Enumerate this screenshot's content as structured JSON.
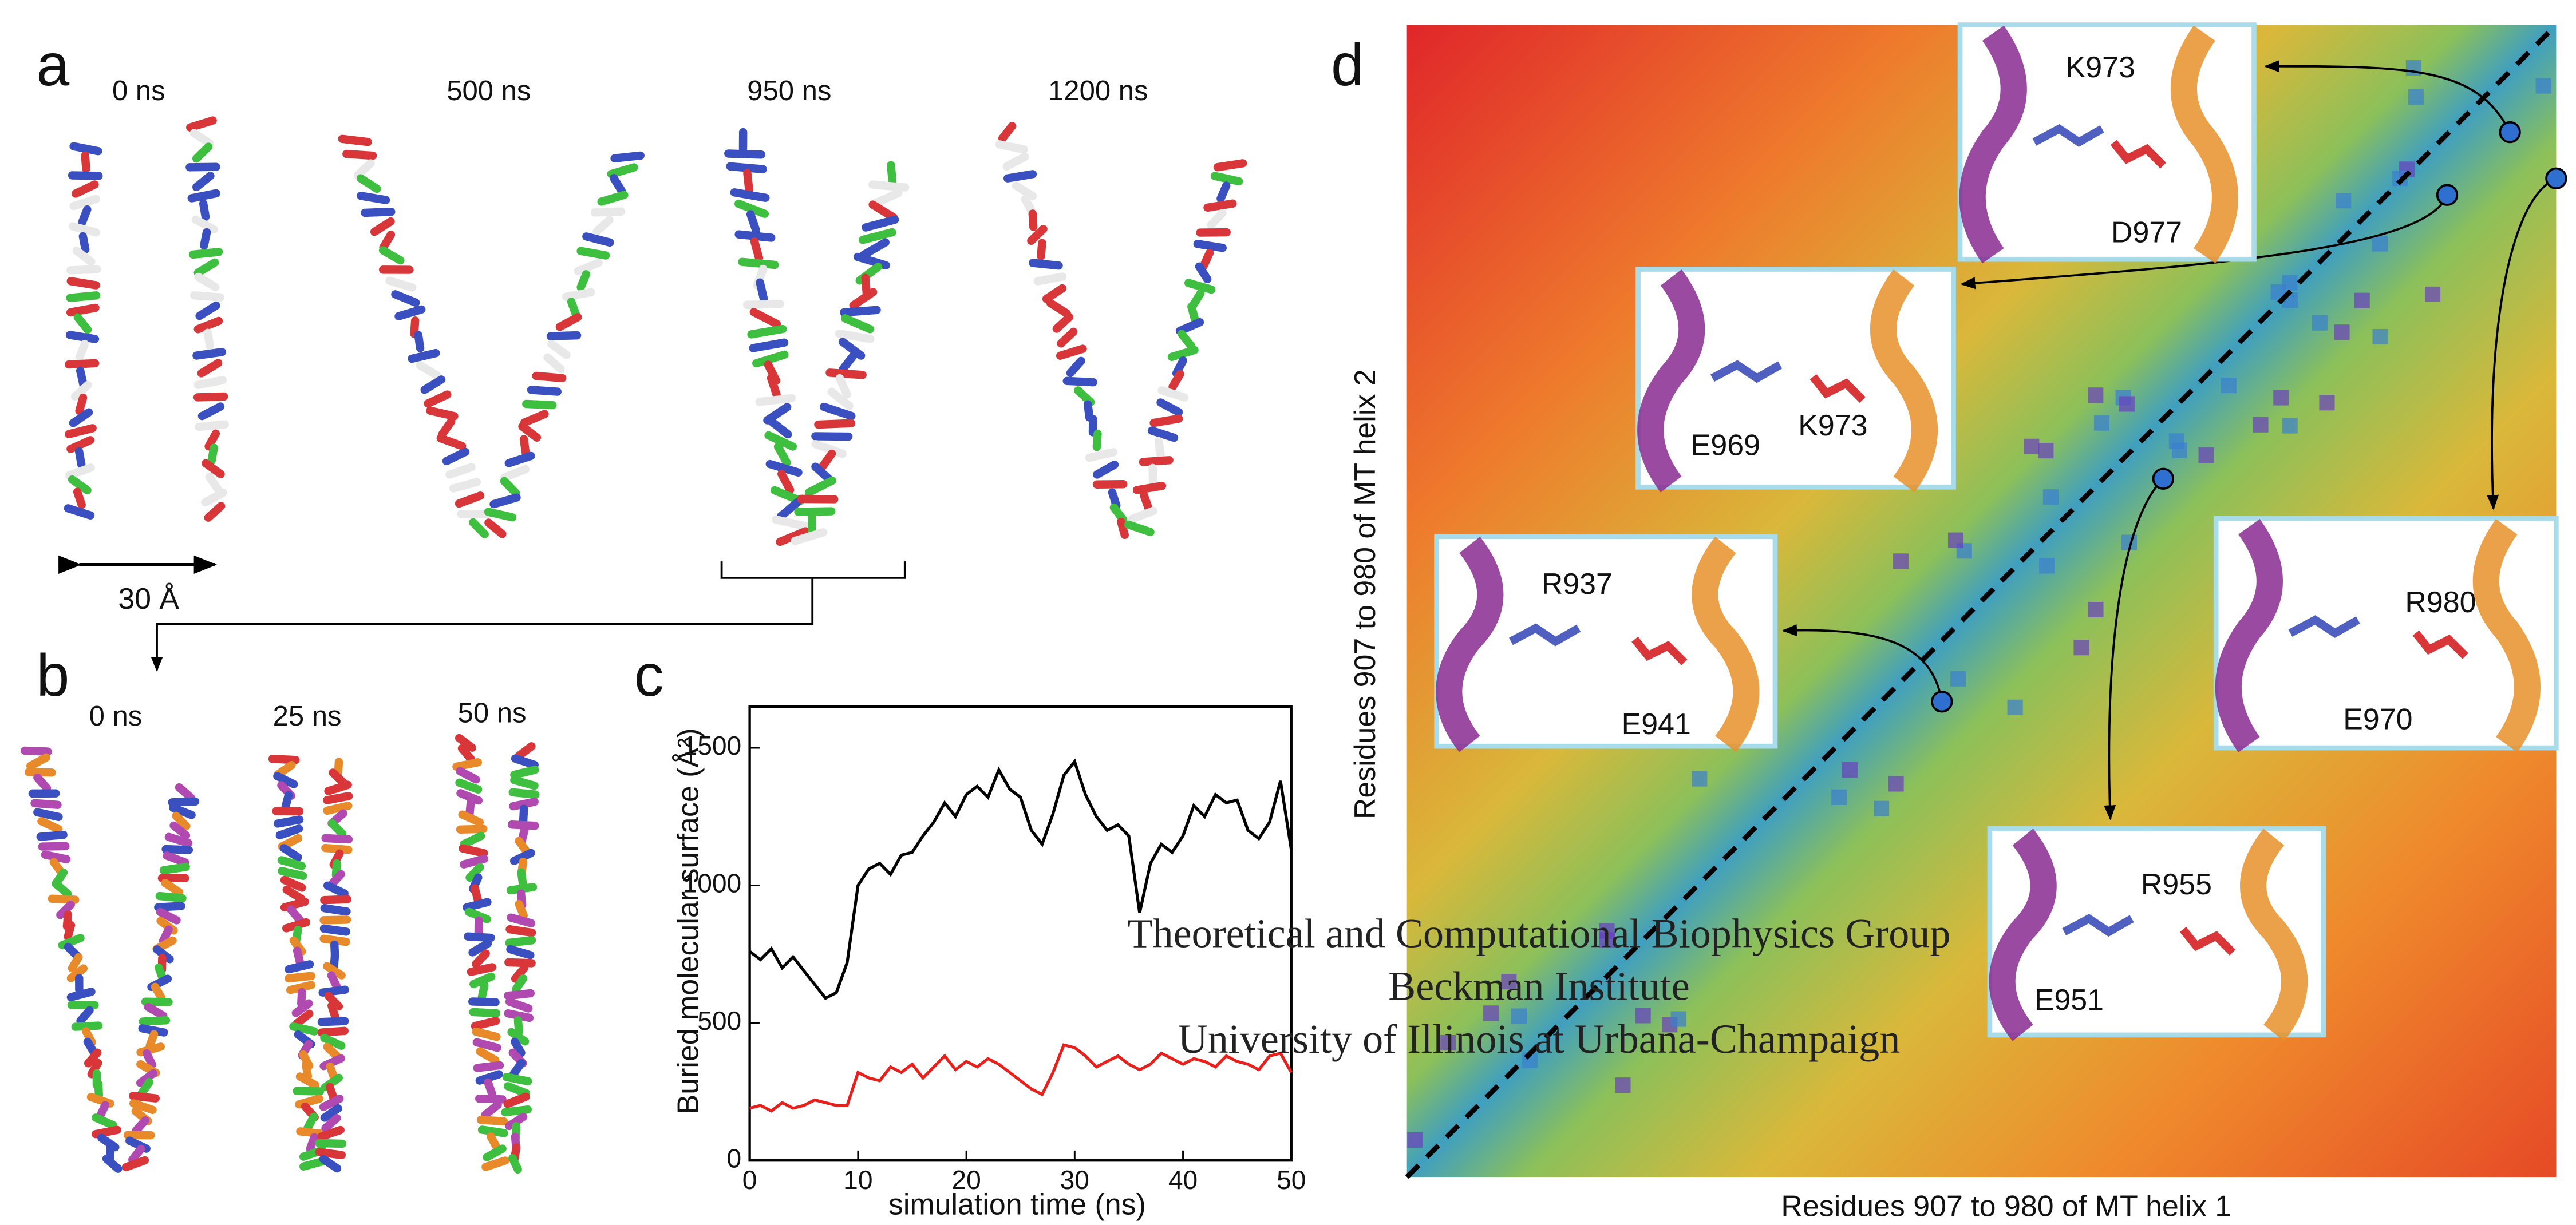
{
  "panels": {
    "a": "a",
    "b": "b",
    "c": "c",
    "d": "d"
  },
  "panel_a": {
    "times": [
      "0 ns",
      "500 ns",
      "950 ns",
      "1200 ns"
    ],
    "scale": "30  Å"
  },
  "panel_b": {
    "times": [
      "0 ns",
      "25 ns",
      "50 ns"
    ]
  },
  "chart_data": {
    "type": "line",
    "x_label": "simulation time (ns)",
    "y_label": "Buried molecular surface (Å²)",
    "x": [
      0,
      1,
      2,
      3,
      4,
      5,
      6,
      7,
      8,
      9,
      10,
      11,
      12,
      13,
      14,
      15,
      16,
      17,
      18,
      19,
      20,
      21,
      22,
      23,
      24,
      25,
      26,
      27,
      28,
      29,
      30,
      31,
      32,
      33,
      34,
      35,
      36,
      37,
      38,
      39,
      40,
      41,
      42,
      43,
      44,
      45,
      46,
      47,
      48,
      49,
      50
    ],
    "series": [
      {
        "color": "#000000",
        "values": [
          760,
          730,
          770,
          700,
          740,
          690,
          640,
          590,
          610,
          720,
          1000,
          1060,
          1080,
          1040,
          1110,
          1120,
          1180,
          1230,
          1300,
          1250,
          1330,
          1360,
          1320,
          1420,
          1350,
          1320,
          1200,
          1150,
          1260,
          1400,
          1450,
          1330,
          1250,
          1200,
          1220,
          1180,
          900,
          1080,
          1150,
          1120,
          1180,
          1290,
          1250,
          1330,
          1300,
          1310,
          1200,
          1170,
          1230,
          1380,
          1130
        ]
      },
      {
        "color": "#e8201c",
        "values": [
          190,
          200,
          180,
          210,
          190,
          200,
          220,
          210,
          200,
          200,
          320,
          300,
          290,
          340,
          320,
          350,
          300,
          340,
          380,
          330,
          360,
          340,
          370,
          350,
          320,
          290,
          260,
          240,
          320,
          420,
          410,
          380,
          340,
          360,
          380,
          350,
          330,
          350,
          390,
          370,
          350,
          370,
          360,
          340,
          380,
          360,
          350,
          330,
          380,
          390,
          320
        ]
      }
    ],
    "xlim": [
      0,
      50
    ],
    "ylim": [
      0,
      1650
    ],
    "xticks": [
      0,
      10,
      20,
      30,
      40,
      50
    ],
    "yticks": [
      0,
      500,
      1000,
      1500
    ]
  },
  "panel_d": {
    "x_label": "Residues 907 to 980 of MT helix 1",
    "y_label": "Residues 907 to 980 of MT helix 2",
    "insets": [
      {
        "labels": [
          "K973",
          "D977"
        ]
      },
      {
        "labels": [
          "E969",
          "K973"
        ]
      },
      {
        "labels": [
          "R937",
          "E941"
        ]
      },
      {
        "labels": [
          "R980",
          "E970"
        ]
      },
      {
        "labels": [
          "R955",
          "E951"
        ]
      }
    ]
  },
  "watermark": [
    "Theoretical and Computational Biophysics Group",
    "Beckman Institute",
    "University of Illinois at Urbana-Champaign"
  ]
}
